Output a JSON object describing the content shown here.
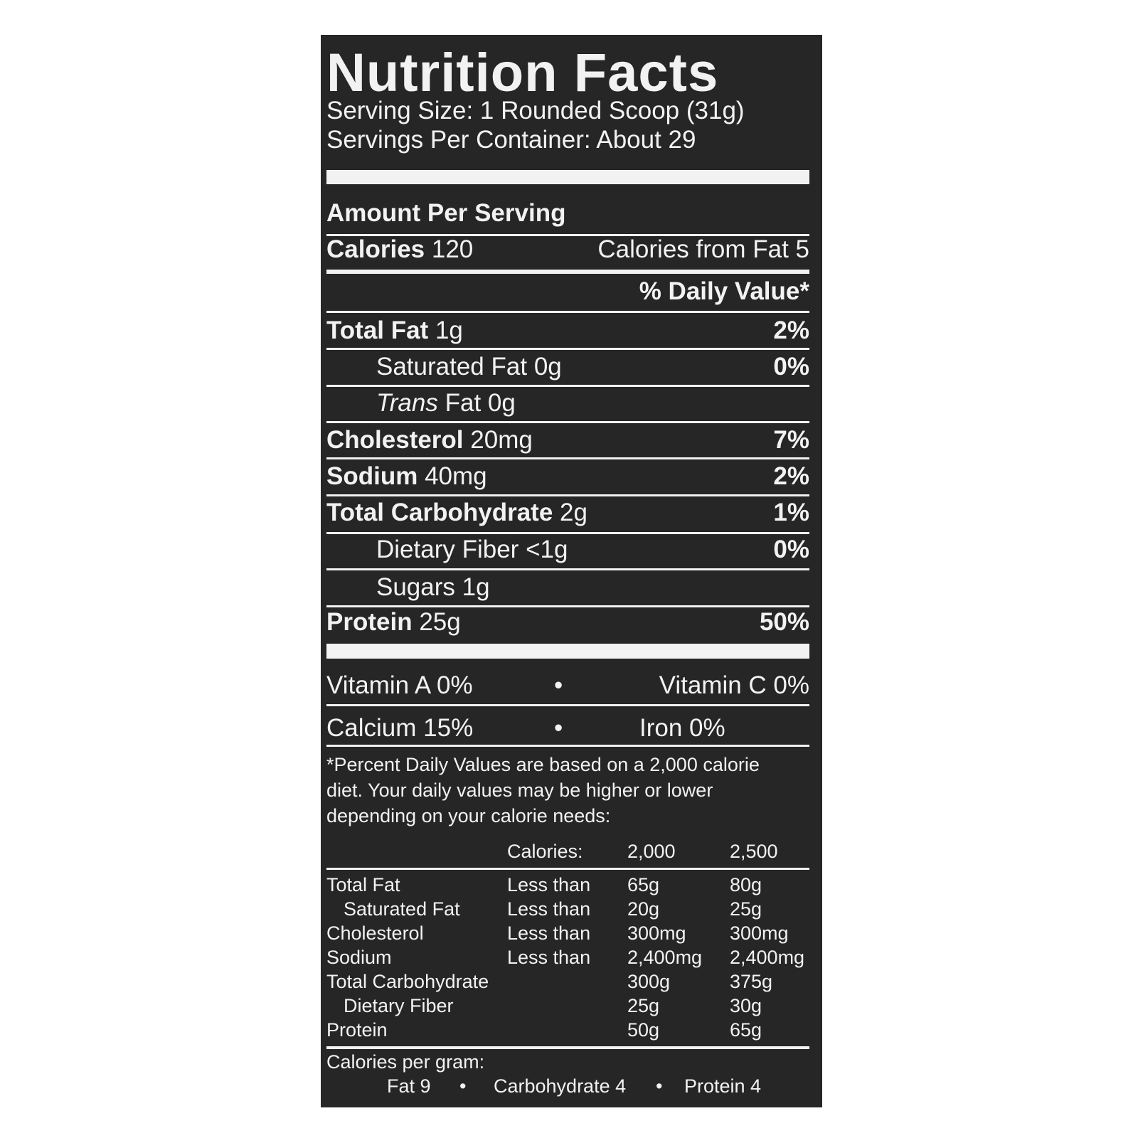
{
  "title": "Nutrition Facts",
  "serving_size": "Serving Size: 1 Rounded Scoop (31g)",
  "servings_per_container": "Servings Per Container: About 29",
  "amount_per_serving": "Amount Per Serving",
  "calories": {
    "label": "Calories",
    "value": "120",
    "from_fat": "Calories from Fat 5"
  },
  "daily_value_header": "% Daily Value*",
  "nutrients": [
    {
      "label": "Total Fat",
      "amount": "1g",
      "dv": "2%"
    },
    {
      "label": "Saturated Fat",
      "amount": "0g",
      "dv": "0%"
    },
    {
      "label": "Trans",
      "label_rest": "Fat",
      "amount": "0g",
      "dv": ""
    },
    {
      "label": "Cholesterol",
      "amount": "20mg",
      "dv": "7%"
    },
    {
      "label": "Sodium",
      "amount": "40mg",
      "dv": "2%"
    },
    {
      "label": "Total Carbohydrate",
      "amount": "2g",
      "dv": "1%"
    },
    {
      "label": "Dietary Fiber",
      "amount": "<1g",
      "dv": "0%"
    },
    {
      "label": "Sugars",
      "amount": "1g",
      "dv": ""
    },
    {
      "label": "Protein",
      "amount": "25g",
      "dv": "50%"
    }
  ],
  "vitamins": {
    "a": "Vitamin A 0%",
    "c": "Vitamin C 0%",
    "calcium": "Calcium 15%",
    "iron": "Iron 0%",
    "bullet": "•"
  },
  "footnote": [
    "*Percent Daily Values are based on a 2,000 calorie",
    "diet. Your daily values may be higher or lower",
    "depending on your calorie needs:"
  ],
  "dv_table": {
    "header": [
      "",
      "Calories:",
      "2,000",
      "2,500"
    ],
    "rows": [
      [
        "Total Fat",
        "Less than",
        "65g",
        "80g"
      ],
      [
        "Saturated Fat",
        "Less than",
        "20g",
        "25g"
      ],
      [
        "Cholesterol",
        "Less than",
        "300mg",
        "300mg"
      ],
      [
        "Sodium",
        "Less than",
        "2,400mg",
        "2,400mg"
      ],
      [
        "Total Carbohydrate",
        "",
        "300g",
        "375g"
      ],
      [
        "Dietary Fiber",
        "",
        "25g",
        "30g"
      ],
      [
        "Protein",
        "",
        "50g",
        "65g"
      ]
    ]
  },
  "calories_per_gram": {
    "label": "Calories per gram:",
    "fat": "Fat 9",
    "carb": "Carbohydrate 4",
    "protein": "Protein 4",
    "bullet": "•"
  },
  "colors": {
    "label_bg": "#262626",
    "text": "#f2f2f2",
    "page_bg": "#ffffff"
  }
}
